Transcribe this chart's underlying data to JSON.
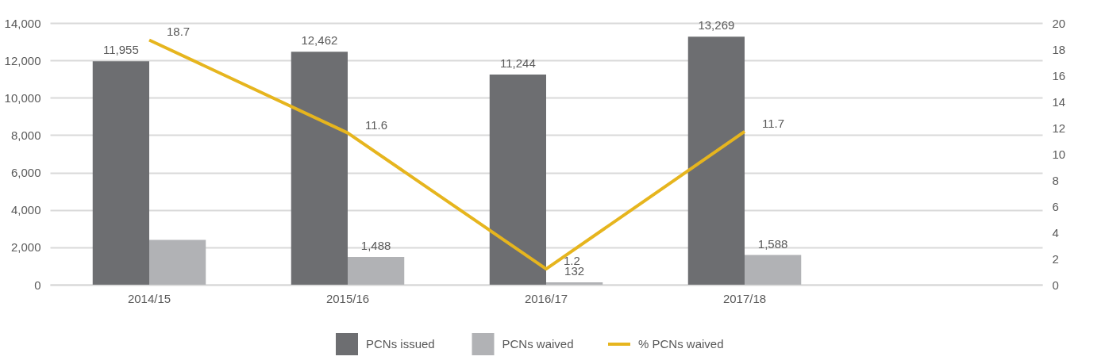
{
  "chart_data": {
    "type": "bar",
    "categories": [
      "2014/15",
      "2015/16",
      "2016/17",
      "2017/18",
      null
    ],
    "series": [
      {
        "name": "PCNs issued",
        "color": "#6d6e71",
        "values": [
          11955,
          12462,
          11244,
          13269,
          null
        ],
        "value_labels": [
          "11,955",
          "12,462",
          "11,244",
          "13,269",
          null
        ]
      },
      {
        "name": "PCNs waived",
        "color": "#b1b2b5",
        "values": [
          2400,
          1488,
          132,
          1588,
          null
        ],
        "value_labels": [
          null,
          "1,488",
          "132",
          "1,588",
          null
        ]
      },
      {
        "name": "% PCNs waived",
        "type": "line",
        "axis": "y2",
        "color": "#e6b51e",
        "values": [
          18.7,
          11.6,
          1.2,
          11.7,
          null
        ],
        "value_labels": [
          "18.7",
          "11.6",
          "1.2",
          "11.7",
          null
        ]
      }
    ],
    "ylim": [
      0,
      14000
    ],
    "yticks": [
      {
        "value": 0,
        "label": "0"
      },
      {
        "value": 2000,
        "label": "2,000"
      },
      {
        "value": 4000,
        "label": "4,000"
      },
      {
        "value": 6000,
        "label": "6,000"
      },
      {
        "value": 8000,
        "label": "8,000"
      },
      {
        "value": 10000,
        "label": "10,000"
      },
      {
        "value": 12000,
        "label": "12,000"
      },
      {
        "value": 14000,
        "label": "14,000"
      }
    ],
    "y2lim": [
      0,
      20
    ],
    "y2ticks": [
      0,
      2,
      4,
      6,
      8,
      10,
      12,
      14,
      16,
      18,
      20
    ],
    "grid": "y",
    "legend": "bottom"
  }
}
